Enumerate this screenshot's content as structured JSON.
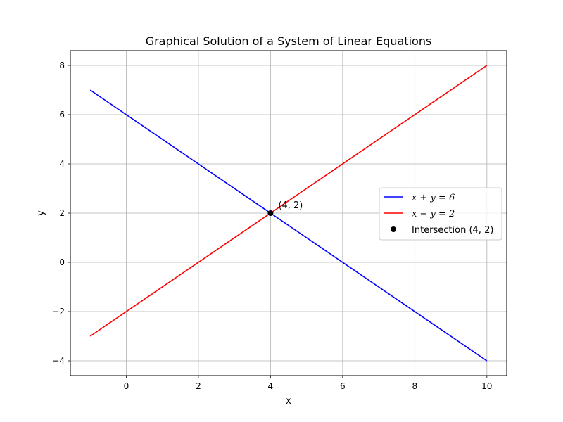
{
  "chart_data": {
    "type": "line",
    "title": "Graphical Solution of a System of Linear Equations",
    "xlabel": "x",
    "ylabel": "y",
    "xlim": [
      -1.55,
      10.55
    ],
    "ylim": [
      -4.6,
      8.6
    ],
    "xticks": [
      0,
      2,
      4,
      6,
      8,
      10
    ],
    "xtick_labels": [
      "0",
      "2",
      "4",
      "6",
      "8",
      "10"
    ],
    "yticks": [
      -4,
      -2,
      0,
      2,
      4,
      6,
      8
    ],
    "ytick_labels": [
      "−4",
      "−2",
      "0",
      "2",
      "4",
      "6",
      "8"
    ],
    "grid": true,
    "legend_position": "center-right",
    "series": [
      {
        "name": "x + y = 6",
        "kind": "line",
        "color": "#0000ff",
        "x": [
          -1,
          10
        ],
        "y": [
          7,
          -4
        ]
      },
      {
        "name": "x − y = 2",
        "kind": "line",
        "color": "#ff0000",
        "x": [
          -1,
          10
        ],
        "y": [
          -3,
          8
        ]
      },
      {
        "name": "Intersection (4, 2)",
        "kind": "point",
        "color": "#000000",
        "x": [
          4
        ],
        "y": [
          2
        ]
      }
    ],
    "annotations": [
      {
        "text": "(4, 2)",
        "x": 4,
        "y": 2
      }
    ]
  }
}
